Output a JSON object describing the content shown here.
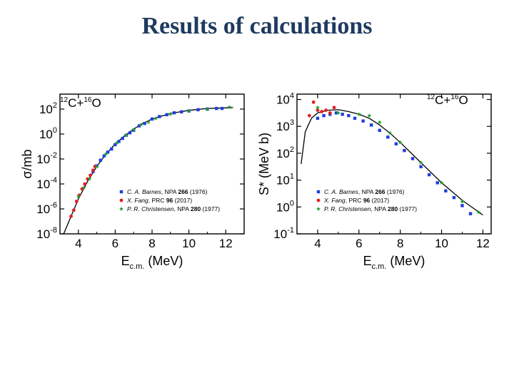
{
  "slide": {
    "title": "Results of calculations"
  },
  "colors": {
    "title": "#1f3a5f",
    "barnes": "#1f3fe0",
    "fang": "#e02020",
    "christensen": "#1f9e2f",
    "theory": "#000000"
  },
  "legend": [
    {
      "key": "barnes",
      "marker": "square",
      "author": "C. A. Barnes",
      "ref": ", NPA ",
      "vol": "266",
      "year": " (1976)"
    },
    {
      "key": "fang",
      "marker": "circle",
      "author": "X. Fang",
      "ref": ", PRC ",
      "vol": "96",
      "year": " (2017)"
    },
    {
      "key": "christensen",
      "marker": "star",
      "author": "P. R. Christensen",
      "ref": ",  NPA ",
      "vol": "280",
      "year": " (1977)"
    }
  ],
  "chart_data": [
    {
      "type": "scatter",
      "panel": "left",
      "reaction_label": {
        "a": "12",
        "b": "C+",
        "c": "16",
        "d": "O"
      },
      "xlabel": {
        "main": "E",
        "sub": "c.m.",
        "unit": " (MeV)"
      },
      "ylabel": {
        "sym": "σ",
        "unit": "/m",
        "tail": "b"
      },
      "xlim": [
        3.0,
        13.0
      ],
      "ylim_log10": [
        -8.0,
        3.2
      ],
      "xticks": [
        4,
        6,
        8,
        10,
        12
      ],
      "yticks": [
        {
          "exp": 2,
          "base": "10",
          "sup": "2"
        },
        {
          "exp": 0,
          "base": "10",
          "sup": "0"
        },
        {
          "exp": -2,
          "base": "10",
          "sup": "-2"
        },
        {
          "exp": -4,
          "base": "10",
          "sup": "-4"
        },
        {
          "exp": -6,
          "base": "10",
          "sup": "-6"
        },
        {
          "exp": -8,
          "base": "10",
          "sup": "-8"
        }
      ],
      "theory": {
        "x": [
          3.2,
          3.6,
          4.0,
          4.5,
          5.0,
          5.5,
          6.0,
          6.5,
          7.0,
          7.5,
          8.0,
          9.0,
          10.0,
          11.0,
          12.0,
          12.4
        ],
        "log10_y": [
          -8.0,
          -6.6,
          -5.2,
          -3.8,
          -2.6,
          -1.6,
          -0.8,
          -0.15,
          0.4,
          0.85,
          1.2,
          1.65,
          1.9,
          2.05,
          2.1,
          2.12
        ]
      },
      "series": [
        {
          "name": "C. A. Barnes, NPA 266 (1976)",
          "key": "barnes",
          "x": [
            4.8,
            5.0,
            5.2,
            5.4,
            5.6,
            5.8,
            6.0,
            6.2,
            6.4,
            6.6,
            6.8,
            7.0,
            7.3,
            7.6,
            8.0,
            8.4,
            8.8,
            9.2,
            9.6,
            10.0,
            10.5,
            11.0,
            11.5,
            11.8
          ],
          "log10_y": [
            -3.0,
            -2.55,
            -2.1,
            -1.75,
            -1.45,
            -1.2,
            -0.85,
            -0.6,
            -0.35,
            -0.1,
            0.1,
            0.3,
            0.65,
            0.85,
            1.2,
            1.4,
            1.55,
            1.7,
            1.78,
            1.85,
            1.95,
            2.0,
            2.05,
            2.05
          ]
        },
        {
          "name": "X. Fang, PRC 96 (2017)",
          "key": "fang",
          "x": [
            3.6,
            3.75,
            3.9,
            4.05,
            4.2,
            4.35,
            4.5,
            4.65,
            4.8,
            4.9
          ],
          "log10_y": [
            -6.6,
            -6.1,
            -5.4,
            -4.9,
            -4.4,
            -4.0,
            -3.6,
            -3.3,
            -2.9,
            -2.6
          ]
        },
        {
          "name": "P. R. Christensen, NPA 280 (1977)",
          "key": "christensen",
          "x": [
            4.0,
            4.3,
            4.6,
            5.0,
            5.5,
            6.1,
            6.6,
            7.0,
            7.4,
            7.8,
            8.2,
            9.0,
            10.0,
            11.0,
            12.2
          ],
          "log10_y": [
            -5.0,
            -4.3,
            -3.6,
            -2.6,
            -1.6,
            -0.7,
            -0.1,
            0.35,
            0.75,
            0.95,
            1.25,
            1.6,
            1.85,
            2.0,
            2.15
          ]
        }
      ]
    },
    {
      "type": "scatter",
      "panel": "right",
      "reaction_label": {
        "a": "12",
        "b": "C+",
        "c": "16",
        "d": "O"
      },
      "xlabel": {
        "main": "E",
        "sub": "c.m.",
        "unit": " (MeV)"
      },
      "ylabel": {
        "sym": "S",
        "unit": "* (MeV b)",
        "tail": ""
      },
      "xlim": [
        3.0,
        12.4
      ],
      "ylim_log10": [
        -1.0,
        4.2
      ],
      "xticks": [
        4,
        6,
        8,
        10,
        12
      ],
      "yticks": [
        {
          "exp": 4,
          "base": "10",
          "sup": "4"
        },
        {
          "exp": 3,
          "base": "10",
          "sup": "3"
        },
        {
          "exp": 2,
          "base": "10",
          "sup": "2"
        },
        {
          "exp": 1,
          "base": "10",
          "sup": "1"
        },
        {
          "exp": 0,
          "base": "10",
          "sup": "0"
        },
        {
          "exp": -1,
          "base": "10",
          "sup": "-1"
        }
      ],
      "theory": {
        "x": [
          3.2,
          3.4,
          3.7,
          4.0,
          4.5,
          5.0,
          5.5,
          6.0,
          6.5,
          7.0,
          7.5,
          8.0,
          9.0,
          10.0,
          11.0,
          12.0
        ],
        "log10_y": [
          1.6,
          2.8,
          3.3,
          3.5,
          3.6,
          3.62,
          3.55,
          3.45,
          3.3,
          3.05,
          2.75,
          2.4,
          1.65,
          0.9,
          0.25,
          -0.3
        ]
      },
      "series": [
        {
          "name": "C. A. Barnes, NPA 266 (1976)",
          "key": "barnes",
          "x": [
            4.0,
            4.3,
            4.6,
            4.9,
            5.2,
            5.5,
            5.8,
            6.2,
            6.6,
            7.0,
            7.4,
            7.8,
            8.2,
            8.6,
            9.0,
            9.4,
            9.8,
            10.2,
            10.6,
            11.0,
            11.4
          ],
          "log10_y": [
            3.3,
            3.4,
            3.45,
            3.5,
            3.45,
            3.4,
            3.3,
            3.2,
            3.05,
            2.85,
            2.6,
            2.35,
            2.1,
            1.8,
            1.5,
            1.2,
            0.9,
            0.6,
            0.35,
            0.05,
            -0.25
          ]
        },
        {
          "name": "X. Fang, PRC 96 (2017)",
          "key": "fang",
          "x": [
            3.6,
            3.8,
            4.0,
            4.2,
            4.4,
            4.6,
            4.8
          ],
          "log10_y": [
            3.4,
            3.9,
            3.6,
            3.55,
            3.6,
            3.5,
            3.7
          ]
        },
        {
          "name": "P. R. Christensen, NPA 280 (1977)",
          "key": "christensen",
          "x": [
            4.0,
            5.0,
            6.0,
            6.5,
            7.0,
            7.5,
            8.0,
            9.0,
            10.0,
            11.0,
            11.8
          ],
          "log10_y": [
            3.7,
            3.5,
            3.45,
            3.4,
            3.15,
            2.75,
            2.4,
            1.65,
            0.9,
            0.2,
            -0.2
          ]
        }
      ]
    }
  ]
}
